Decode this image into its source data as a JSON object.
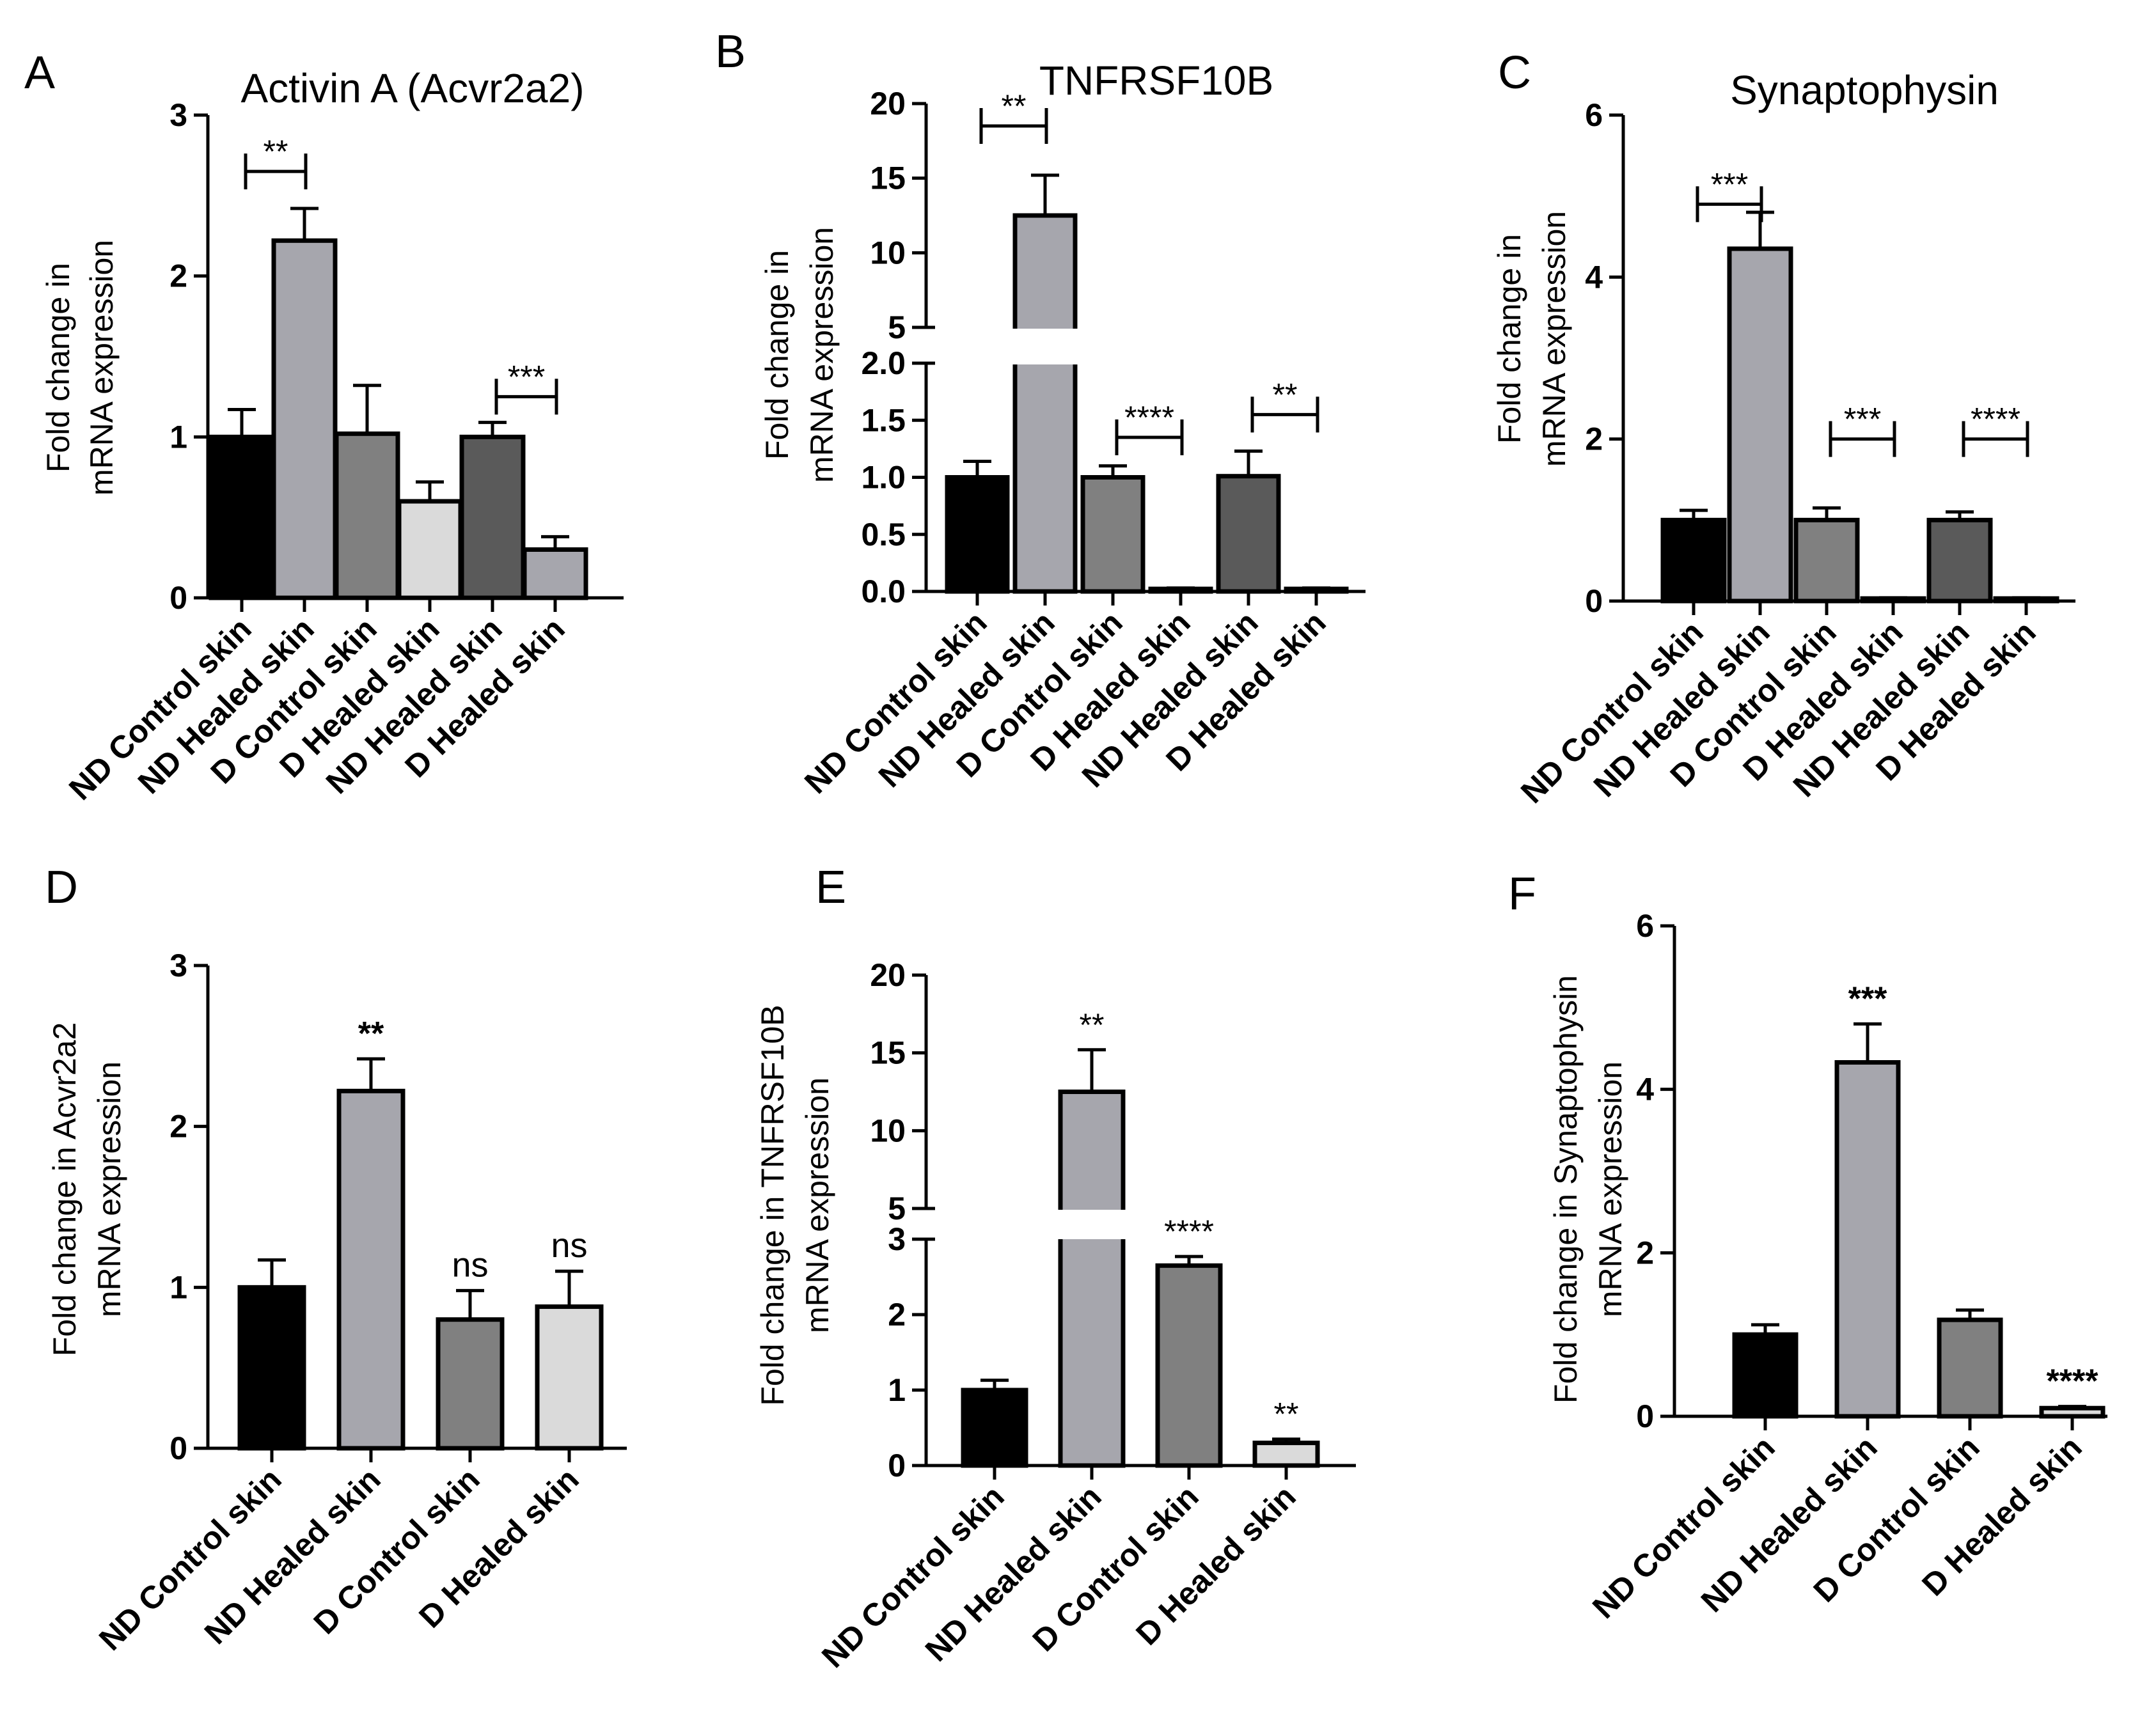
{
  "figure": {
    "panels": [
      {
        "letter": "A",
        "title": "Activin A (Acvr2a2)",
        "ylabel_lines": [
          "Fold change in",
          "mRNA expression"
        ]
      },
      {
        "letter": "B",
        "title": "TNFRSF10B",
        "ylabel_lines": [
          "Fold change in",
          "mRNA expression"
        ]
      },
      {
        "letter": "C",
        "title": "Synaptophysin",
        "ylabel_lines": [
          "Fold change in",
          "mRNA expression"
        ]
      },
      {
        "letter": "D",
        "title": "",
        "ylabel_lines": [
          "Fold change in Acvr2a2",
          "mRNA expression"
        ]
      },
      {
        "letter": "E",
        "title": "",
        "ylabel_lines": [
          "Fold change in TNFRSF10B",
          "mRNA expression"
        ]
      },
      {
        "letter": "F",
        "title": "",
        "ylabel_lines": [
          "Fold change in Synaptophysin",
          "mRNA expression"
        ]
      }
    ]
  },
  "chart_data": [
    {
      "type": "bar",
      "panel": "A",
      "title": "Activin A (Acvr2a2)",
      "ylabel": "Fold change in mRNA expression",
      "categories": [
        "ND Control skin",
        "ND Healed skin",
        "D Control skin",
        "D Healed skin",
        "ND Healed skin",
        "D Healed skin"
      ],
      "values": [
        1.0,
        2.22,
        1.02,
        0.6,
        1.0,
        0.3
      ],
      "errors": [
        0.17,
        0.2,
        0.3,
        0.12,
        0.09,
        0.08
      ],
      "colors": [
        "#000000",
        "#a6a6ad",
        "#808080",
        "#dadada",
        "#5a5a5a",
        "#a6a6ad"
      ],
      "ylim": [
        0,
        3
      ],
      "yticks": [
        0,
        1,
        2,
        3
      ],
      "ytick_labels": [
        "0",
        "1",
        "2",
        "3"
      ],
      "brackets": [
        {
          "from": 0,
          "to": 1,
          "y": 2.65,
          "label": "**"
        },
        {
          "from": 4,
          "to": 5,
          "y": 1.25,
          "label": "***"
        }
      ],
      "stars": []
    },
    {
      "type": "bar",
      "panel": "B",
      "title": "TNFRSF10B",
      "ylabel": "Fold change in mRNA expression",
      "categories": [
        "ND Control skin",
        "ND Healed skin",
        "D Control skin",
        "D Healed skin",
        "ND Healed skin",
        "D Healed skin"
      ],
      "values": [
        1.0,
        12.5,
        1.0,
        0.02,
        1.01,
        0.02
      ],
      "errors": [
        0.14,
        2.7,
        0.1,
        0.01,
        0.22,
        0.01
      ],
      "colors": [
        "#000000",
        "#a6a6ad",
        "#808080",
        "#dadada",
        "#5a5a5a",
        "#a6a6ad"
      ],
      "ylim": [
        0,
        20
      ],
      "axis_break": {
        "lower": [
          0,
          2.0
        ],
        "upper": [
          5,
          20
        ]
      },
      "yticks": [
        0,
        0.5,
        1.0,
        1.5,
        2.0,
        5,
        10,
        15,
        20
      ],
      "ytick_labels": [
        "0.0",
        "0.5",
        "1.0",
        "1.5",
        "2.0",
        "5",
        "10",
        "15",
        "20"
      ],
      "brackets": [
        {
          "from": 0,
          "to": 1,
          "y": 18.5,
          "label": "**"
        },
        {
          "from": 2,
          "to": 3,
          "y": 1.35,
          "label": "****"
        },
        {
          "from": 4,
          "to": 5,
          "y": 1.55,
          "label": "**"
        }
      ],
      "stars": []
    },
    {
      "type": "bar",
      "panel": "C",
      "title": "Synaptophysin",
      "ylabel": "Fold change in mRNA expression",
      "categories": [
        "ND Control skin",
        "ND Healed skin",
        "D Control skin",
        "D Healed skin",
        "ND Healed skin",
        "D Healed skin"
      ],
      "values": [
        1.0,
        4.35,
        1.0,
        0.03,
        1.0,
        0.03
      ],
      "errors": [
        0.12,
        0.45,
        0.15,
        0.01,
        0.1,
        0.01
      ],
      "colors": [
        "#000000",
        "#a6a6ad",
        "#808080",
        "#dadada",
        "#5a5a5a",
        "#a6a6ad"
      ],
      "ylim": [
        0,
        6
      ],
      "yticks": [
        0,
        2,
        4,
        6
      ],
      "ytick_labels": [
        "0",
        "2",
        "4",
        "6"
      ],
      "brackets": [
        {
          "from": 0,
          "to": 1,
          "y": 4.9,
          "label": "***"
        },
        {
          "from": 2,
          "to": 3,
          "y": 2.0,
          "label": "***"
        },
        {
          "from": 4,
          "to": 5,
          "y": 2.0,
          "label": "****"
        }
      ],
      "stars": []
    },
    {
      "type": "bar",
      "panel": "D",
      "title": "",
      "ylabel": "Fold change in Acvr2a2 mRNA expression",
      "categories": [
        "ND Control skin",
        "ND Healed skin",
        "D Control skin",
        "D Healed skin"
      ],
      "values": [
        1.0,
        2.22,
        0.8,
        0.88
      ],
      "errors": [
        0.17,
        0.2,
        0.18,
        0.22
      ],
      "colors": [
        "#000000",
        "#a6a6ad",
        "#808080",
        "#dadada"
      ],
      "ylim": [
        0,
        3
      ],
      "yticks": [
        0,
        1,
        2,
        3
      ],
      "ytick_labels": [
        "0",
        "1",
        "2",
        "3"
      ],
      "brackets": [],
      "stars": [
        {
          "index": 1,
          "label": "**",
          "style": "bold"
        },
        {
          "index": 2,
          "label": "ns",
          "style": "ns"
        },
        {
          "index": 3,
          "label": "ns",
          "style": "ns"
        }
      ]
    },
    {
      "type": "bar",
      "panel": "E",
      "title": "",
      "ylabel": "Fold change in TNFRSF10B mRNA expression",
      "categories": [
        "ND Control skin",
        "ND Healed skin",
        "D Control skin",
        "D Healed skin"
      ],
      "values": [
        1.0,
        12.5,
        2.65,
        0.3
      ],
      "errors": [
        0.13,
        2.7,
        0.12,
        0.05
      ],
      "colors": [
        "#000000",
        "#a6a6ad",
        "#808080",
        "#dadada"
      ],
      "ylim": [
        0,
        20
      ],
      "axis_break": {
        "lower": [
          0,
          3
        ],
        "upper": [
          5,
          20
        ]
      },
      "yticks": [
        0,
        1,
        2,
        3,
        5,
        10,
        15,
        20
      ],
      "ytick_labels": [
        "0",
        "1",
        "2",
        "3",
        "5",
        "10",
        "15",
        "20"
      ],
      "brackets": [],
      "stars": [
        {
          "index": 1,
          "label": "**",
          "style": "plain"
        },
        {
          "index": 2,
          "label": "****",
          "style": "plain"
        },
        {
          "index": 3,
          "label": "**",
          "style": "plain"
        }
      ]
    },
    {
      "type": "bar",
      "panel": "F",
      "title": "",
      "ylabel": "Fold change in Synaptophysin mRNA expression",
      "categories": [
        "ND Control skin",
        "ND Healed skin",
        "D Control skin",
        "D Healed skin"
      ],
      "values": [
        1.0,
        4.33,
        1.18,
        0.1
      ],
      "errors": [
        0.12,
        0.47,
        0.12,
        0.02
      ],
      "colors": [
        "#000000",
        "#a6a6ad",
        "#808080",
        "#dadada"
      ],
      "ylim": [
        0,
        6
      ],
      "yticks": [
        0,
        2,
        4,
        6
      ],
      "ytick_labels": [
        "0",
        "2",
        "4",
        "6"
      ],
      "brackets": [],
      "stars": [
        {
          "index": 1,
          "label": "***",
          "style": "bold"
        },
        {
          "index": 3,
          "label": "****",
          "style": "bold"
        }
      ]
    }
  ]
}
